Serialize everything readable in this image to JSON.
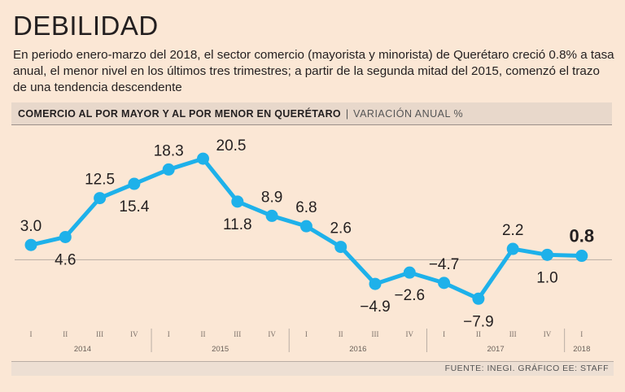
{
  "title": "DEBILIDAD",
  "lede": "En periodo enero-marzo del 2018, el sector comercio (mayorista y minorista) de Querétaro creció 0.8% a tasa anual, el menor nivel en los últimos tres trimestres; a partir de la segunda mitad del 2015, comenzó el trazo de una tendencia descendente",
  "header": {
    "main": "COMERCIO AL POR MAYOR Y AL POR MENOR EN QUERÉTARO",
    "separator": "|",
    "sub": "VARIACIÓN ANUAL %"
  },
  "source": "FUENTE: INEGI. GRÁFICO EE: STAFF",
  "colors": {
    "line": "#1eb1ea",
    "background": "#fbe7d5",
    "zero_line": "#b8aca3"
  },
  "chart_data": {
    "type": "line",
    "title": "COMERCIO AL POR MAYOR Y AL POR MENOR EN QUERÉTARO",
    "ylabel": "VARIACIÓN ANUAL %",
    "xlabel": "",
    "categories": [
      "I",
      "II",
      "III",
      "IV",
      "I",
      "II",
      "III",
      "IV",
      "I",
      "II",
      "III",
      "IV",
      "I",
      "II",
      "III",
      "IV",
      "I"
    ],
    "years": [
      {
        "label": "2014",
        "quarters": 4
      },
      {
        "label": "2015",
        "quarters": 4
      },
      {
        "label": "2016",
        "quarters": 4
      },
      {
        "label": "2017",
        "quarters": 4
      },
      {
        "label": "2018",
        "quarters": 1
      }
    ],
    "series": [
      {
        "name": "Variación anual %",
        "values": [
          3.0,
          4.6,
          12.5,
          15.4,
          18.3,
          20.5,
          11.8,
          8.9,
          6.8,
          2.6,
          -4.9,
          -2.6,
          -4.7,
          -7.9,
          2.2,
          1.0,
          0.8
        ],
        "labels": [
          "3.0",
          "4.6",
          "12.5",
          "15.4",
          "18.3",
          "20.5",
          "11.8",
          "8.9",
          "6.8",
          "2.6",
          "-4.9",
          "-2.6",
          "-4.7",
          "-7.9",
          "2.2",
          "1.0",
          "0.8"
        ],
        "label_positions": [
          "above",
          "below",
          "above",
          "below",
          "above",
          "right",
          "below",
          "above",
          "above",
          "above",
          "below",
          "below",
          "above",
          "below",
          "above",
          "below",
          "above"
        ]
      }
    ],
    "highlight_index": 16,
    "ylim": [
      -10,
      22
    ],
    "grid": false
  }
}
